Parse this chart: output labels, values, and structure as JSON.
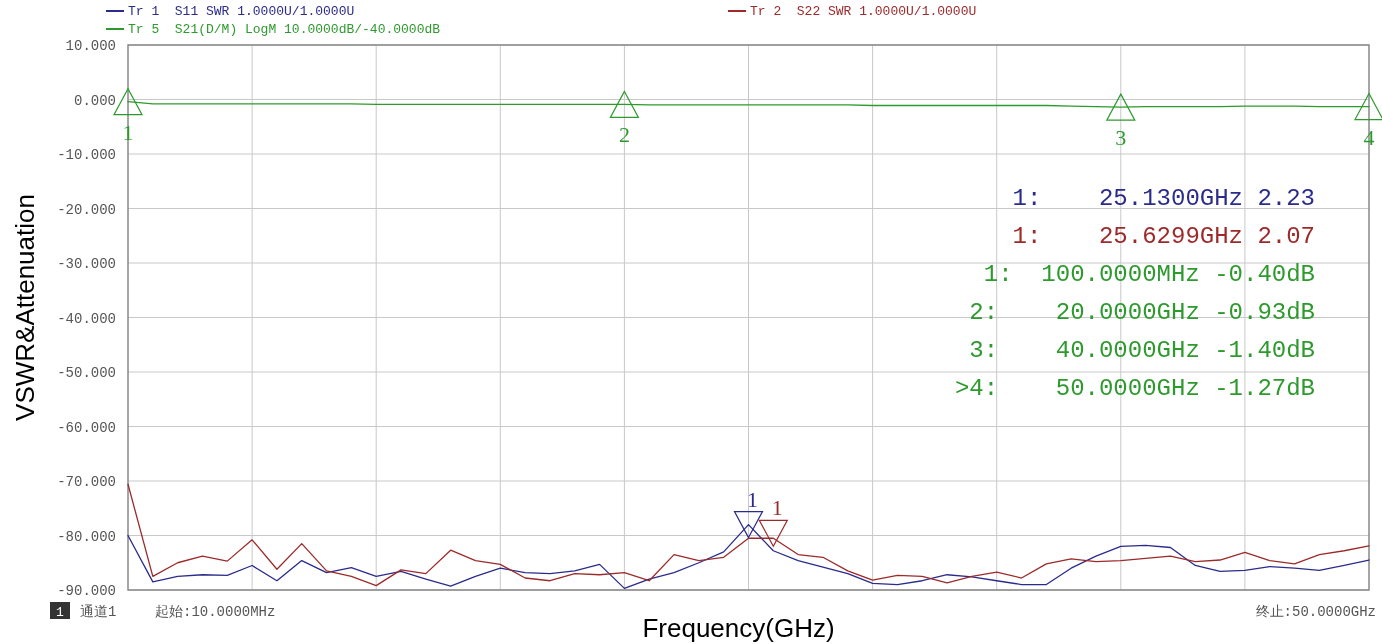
{
  "chart_data": {
    "type": "line",
    "xlabel": "Frequency(GHz)",
    "ylabel": "VSWR&Attenuation",
    "categories": [
      null,
      null,
      null,
      null,
      null,
      null,
      null,
      null,
      null,
      null,
      null,
      null,
      null,
      null,
      null,
      null,
      null,
      null,
      null,
      null,
      null,
      null,
      null,
      null,
      null,
      null,
      null,
      null,
      null,
      null,
      null,
      null,
      null,
      null,
      null,
      null,
      null,
      null,
      null,
      null,
      null,
      null,
      null,
      null,
      null,
      null,
      null,
      null,
      null,
      null,
      null
    ],
    "ylim": [
      -90,
      10
    ],
    "yticks": [
      {
        "value": 10,
        "label": "10.000"
      },
      {
        "value": 0,
        "label": "0.000"
      },
      {
        "value": -10,
        "label": "-10.000"
      },
      {
        "value": -20,
        "label": "-20.000"
      },
      {
        "value": -30,
        "label": "-30.000"
      },
      {
        "value": -40,
        "label": "-40.000"
      },
      {
        "value": -50,
        "label": "-50.000"
      },
      {
        "value": -60,
        "label": "-60.000"
      },
      {
        "value": -70,
        "label": "-70.000"
      },
      {
        "value": -80,
        "label": "-80.000"
      },
      {
        "value": -90,
        "label": "-90.000"
      }
    ],
    "grid": true,
    "line_style": "solid",
    "legend": "top",
    "series": [
      {
        "name": "Tr 1  S11 SWR 1.0000U/1.0000U",
        "color": "#2b2b8c",
        "values": [
          -80,
          -88.5,
          -87.5,
          -87.2,
          -87.3,
          -85.5,
          -88.3,
          -84.6,
          -86.8,
          -85.9,
          -87.5,
          -86.6,
          -88,
          -89.3,
          -87.5,
          -86,
          -86.8,
          -87,
          -86.5,
          -85.3,
          -89.7,
          -88,
          -86.8,
          -85,
          -83,
          -78,
          -82.8,
          -84.6,
          -85.8,
          -87,
          -88.8,
          -89,
          -88.3,
          -87.2,
          -87.6,
          -88.3,
          -89,
          -89,
          -86,
          -83.8,
          -82,
          -81.8,
          -82.2,
          -85.5,
          -86.6,
          -86.4,
          -85.7,
          -86,
          -86.4,
          -85.5,
          -84.5
        ]
      },
      {
        "name": "Tr 2  S22 SWR 1.0000U/1.0000U",
        "color": "#9c2a2a",
        "values": [
          -70.6,
          -87.5,
          -85,
          -83.8,
          -84.7,
          -80.8,
          -86.2,
          -81.5,
          -86.5,
          -87.5,
          -89.2,
          -86.3,
          -87,
          -82.7,
          -84.6,
          -85.3,
          -87.8,
          -88.3,
          -87,
          -87.2,
          -86.8,
          -88.3,
          -83.5,
          -84.6,
          -84,
          -80.5,
          -80.5,
          -83.5,
          -84,
          -86.5,
          -88.2,
          -87.3,
          -87.5,
          -88.7,
          -87.5,
          -86.7,
          -87.8,
          -85.2,
          -84.3,
          -84.8,
          -84.6,
          -84.2,
          -83.8,
          -84.8,
          -84.5,
          -83.1,
          -84.6,
          -85.2,
          -83.5,
          -82.8,
          -81.9
        ]
      },
      {
        "name": "Tr 5  S21(D/M) LogM 10.0000dB/-40.0000dB",
        "color": "#2e9a2e",
        "values": [
          -0.4,
          -0.8,
          -0.8,
          -0.8,
          -0.8,
          -0.8,
          -0.8,
          -0.8,
          -0.8,
          -0.8,
          -0.9,
          -0.9,
          -0.9,
          -0.9,
          -0.9,
          -0.9,
          -0.9,
          -0.9,
          -0.9,
          -0.9,
          -0.9,
          -1.0,
          -1.0,
          -1.0,
          -1.0,
          -1.0,
          -1.0,
          -1.0,
          -1.0,
          -1.0,
          -1.1,
          -1.1,
          -1.1,
          -1.1,
          -1.1,
          -1.1,
          -1.1,
          -1.1,
          -1.2,
          -1.3,
          -1.4,
          -1.3,
          -1.3,
          -1.3,
          -1.3,
          -1.2,
          -1.2,
          -1.2,
          -1.3,
          -1.3,
          -1.3
        ]
      },
      {
        "type": "scatter",
        "marker": "triangle",
        "name": "1",
        "color": "#2e9a2e",
        "values": [
          -0.4,
          null,
          null,
          null,
          null,
          null,
          null,
          null,
          null,
          null,
          null,
          null,
          null,
          null,
          null,
          null,
          null,
          null,
          null,
          null,
          null,
          null,
          null,
          null,
          null,
          null,
          null,
          null,
          null,
          null,
          null,
          null,
          null,
          null,
          null,
          null,
          null,
          null,
          null,
          null,
          null,
          null,
          null,
          null,
          null,
          null,
          null,
          null,
          null,
          null,
          null
        ]
      },
      {
        "type": "scatter",
        "marker": "triangle",
        "name": "2",
        "color": "#2e9a2e",
        "values": [
          null,
          null,
          null,
          null,
          null,
          null,
          null,
          null,
          null,
          null,
          null,
          null,
          null,
          null,
          null,
          null,
          null,
          null,
          null,
          null,
          -0.9,
          null,
          null,
          null,
          null,
          null,
          null,
          null,
          null,
          null,
          null,
          null,
          null,
          null,
          null,
          null,
          null,
          null,
          null,
          null,
          null,
          null,
          null,
          null,
          null,
          null,
          null,
          null,
          null,
          null,
          null
        ]
      },
      {
        "type": "scatter",
        "marker": "triangle",
        "name": "3",
        "color": "#2e9a2e",
        "values": [
          null,
          null,
          null,
          null,
          null,
          null,
          null,
          null,
          null,
          null,
          null,
          null,
          null,
          null,
          null,
          null,
          null,
          null,
          null,
          null,
          null,
          null,
          null,
          null,
          null,
          null,
          null,
          null,
          null,
          null,
          null,
          null,
          null,
          null,
          null,
          null,
          null,
          null,
          null,
          null,
          -1.4,
          null,
          null,
          null,
          null,
          null,
          null,
          null,
          null,
          null,
          null
        ]
      },
      {
        "type": "scatter",
        "marker": "triangle",
        "name": "4",
        "color": "#2e9a2e",
        "values": [
          null,
          null,
          null,
          null,
          null,
          null,
          null,
          null,
          null,
          null,
          null,
          null,
          null,
          null,
          null,
          null,
          null,
          null,
          null,
          null,
          null,
          null,
          null,
          null,
          null,
          null,
          null,
          null,
          null,
          null,
          null,
          null,
          null,
          null,
          null,
          null,
          null,
          null,
          null,
          null,
          null,
          null,
          null,
          null,
          null,
          null,
          null,
          null,
          null,
          null,
          -1.3
        ]
      },
      {
        "type": "scatter",
        "marker": "triangle",
        "name": "1",
        "color": "#2b2b8c",
        "values": [
          null,
          null,
          null,
          null,
          null,
          null,
          null,
          null,
          null,
          null,
          null,
          null,
          null,
          null,
          null,
          null,
          null,
          null,
          null,
          null,
          null,
          null,
          null,
          null,
          null,
          -78,
          null,
          null,
          null,
          null,
          null,
          null,
          null,
          null,
          null,
          null,
          null,
          null,
          null,
          null,
          null,
          null,
          null,
          null,
          null,
          null,
          null,
          null,
          null,
          null,
          null
        ]
      },
      {
        "type": "scatter",
        "marker": "triangle",
        "name": "1",
        "color": "#9c2a2a",
        "values": [
          null,
          null,
          null,
          null,
          null,
          null,
          null,
          null,
          null,
          null,
          null,
          null,
          null,
          null,
          null,
          null,
          null,
          null,
          null,
          null,
          null,
          null,
          null,
          null,
          null,
          null,
          -79.6,
          null,
          null,
          null,
          null,
          null,
          null,
          null,
          null,
          null,
          null,
          null,
          null,
          null,
          null,
          null,
          null,
          null,
          null,
          null,
          null,
          null,
          null,
          null,
          null
        ]
      }
    ],
    "annotations": [
      "1:    25.1300GHz 2.23",
      "1:    25.6299GHz 2.07",
      "1:  100.0000MHz -0.40dB",
      "2:    20.0000GHz -0.93dB",
      "3:    40.0000GHz -1.40dB",
      ">4:    50.0000GHz -1.27dB",
      "1",
      "通道1",
      "起始:10.0000MHz",
      "终止:50.0000GHz"
    ]
  }
}
